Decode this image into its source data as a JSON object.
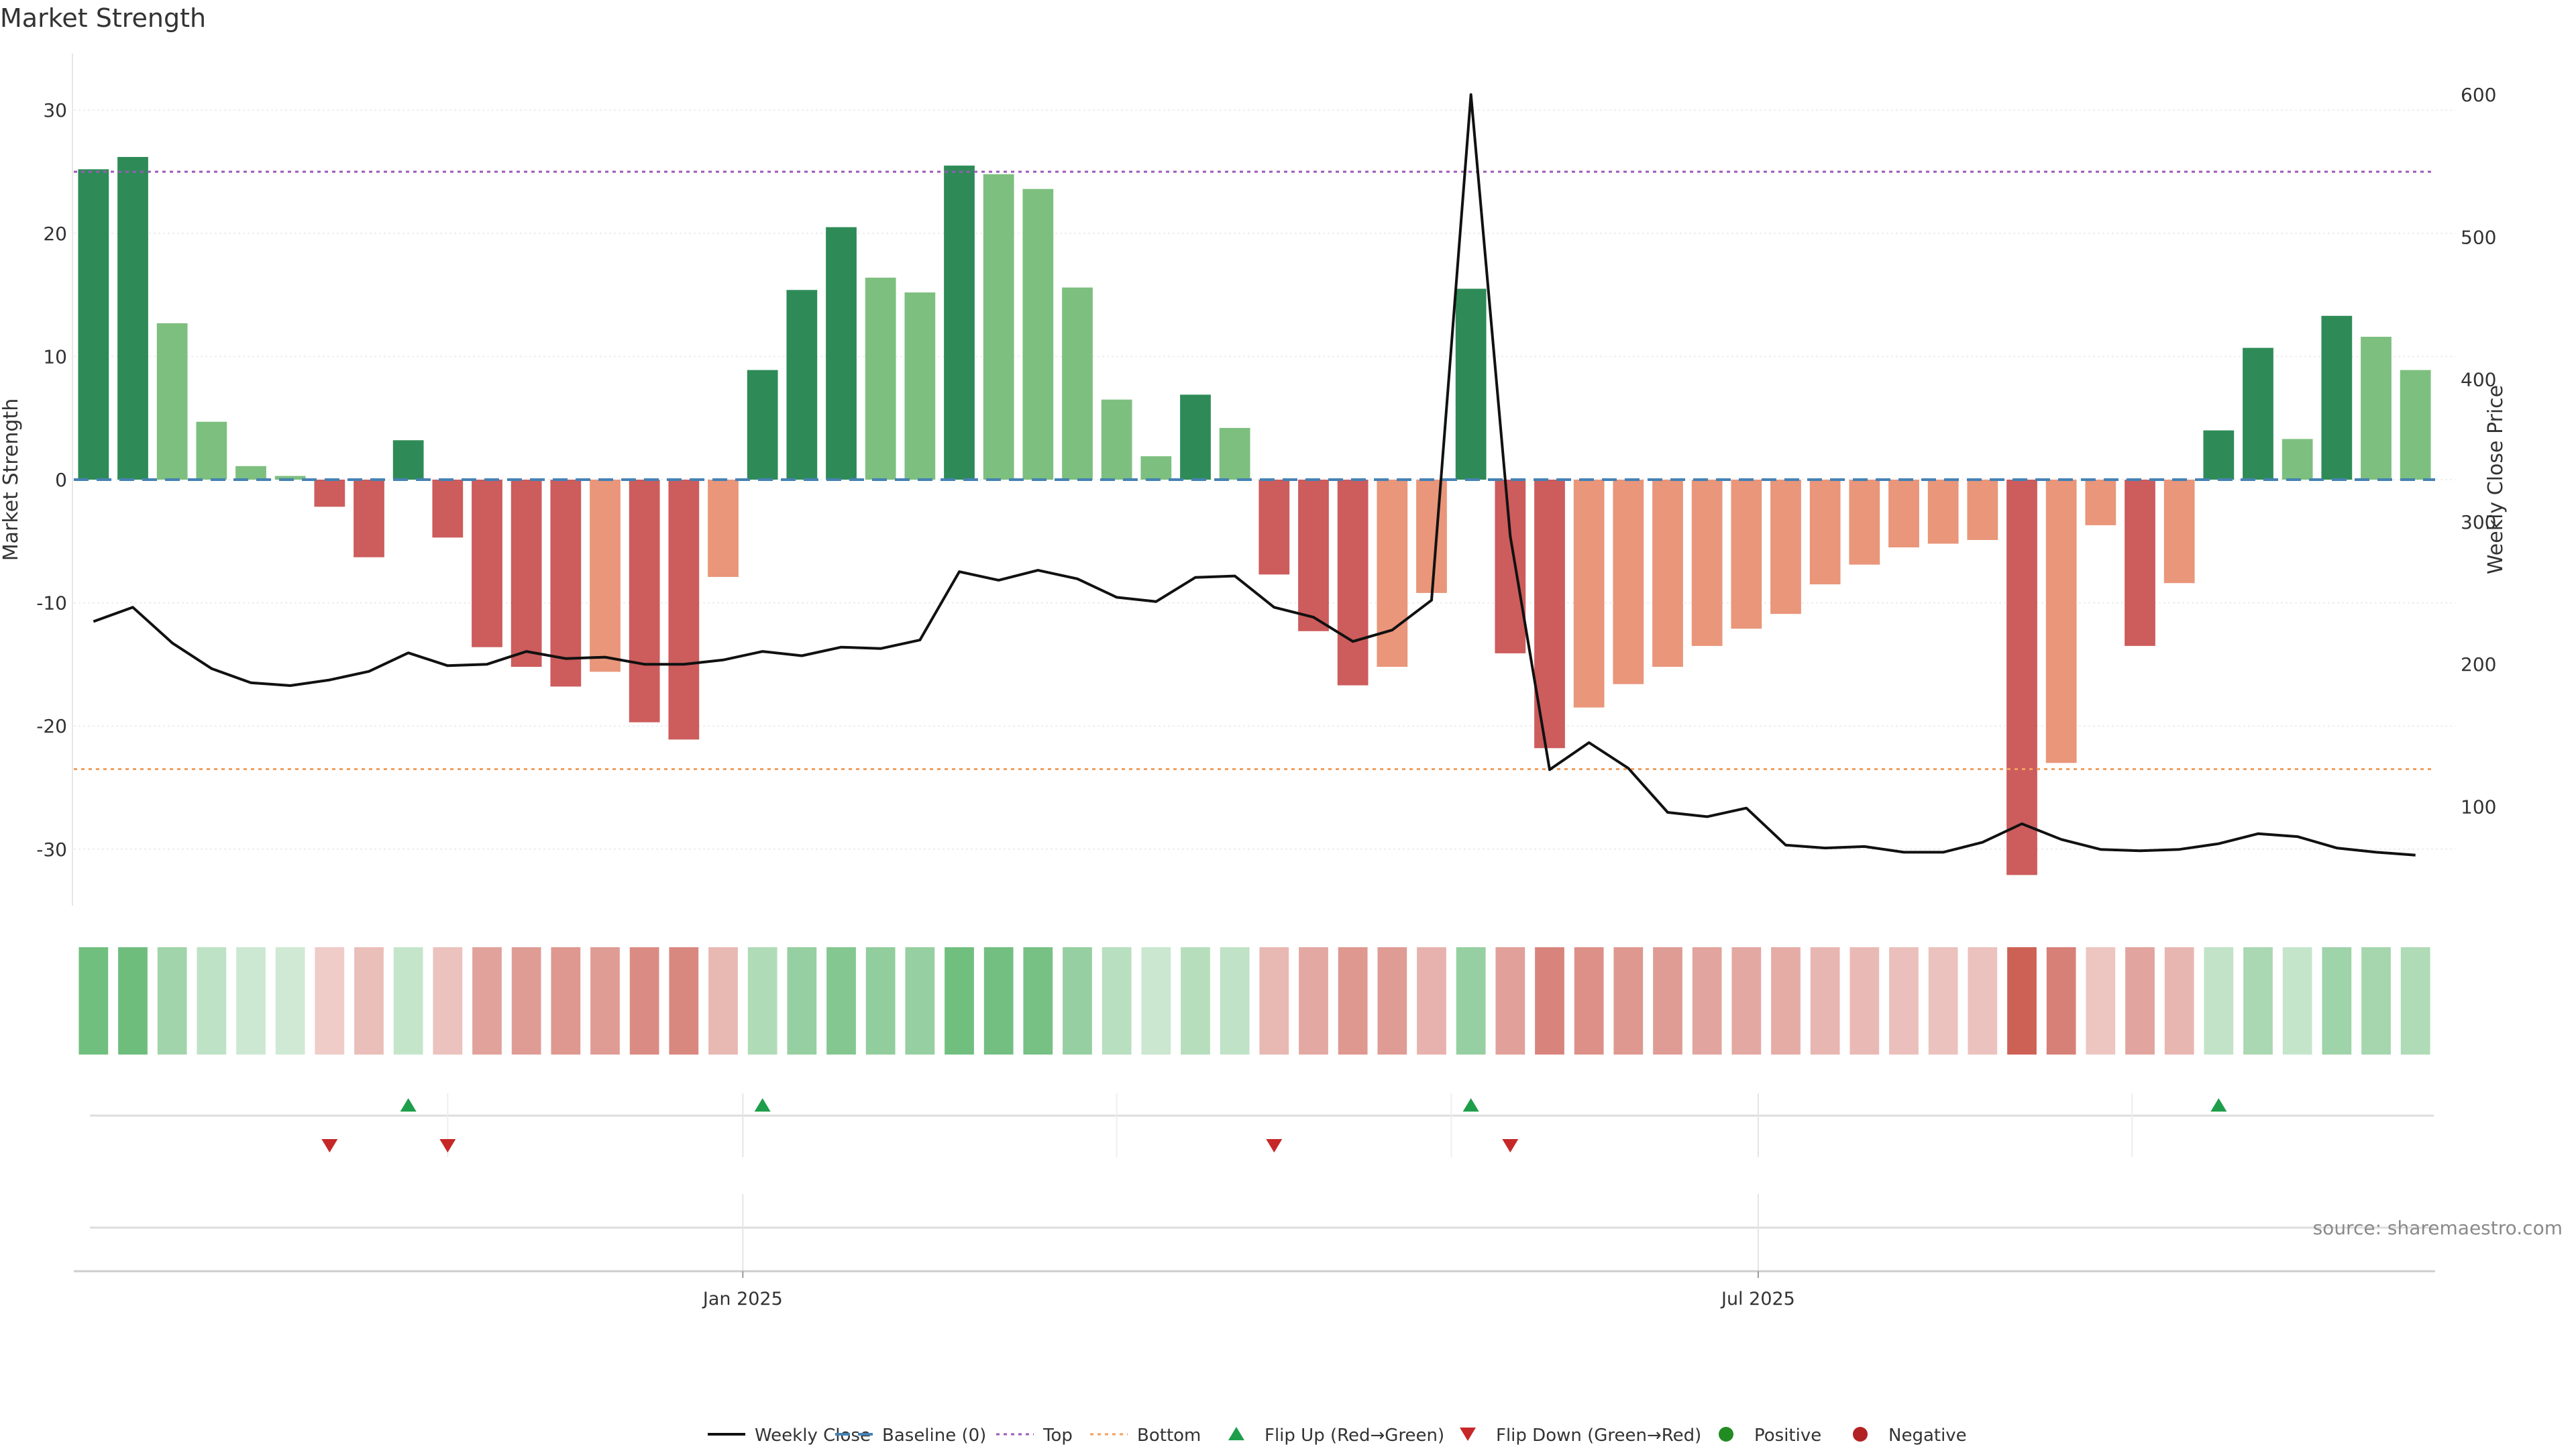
{
  "title": "Market Strength",
  "source": "source: sharemaestro.com",
  "colors": {
    "green_strong": "#2e8b57",
    "green_light": "#7dbf7f",
    "red_strong": "#cd5c5c",
    "red_light": "#e9967a",
    "baseline": "#4682b4",
    "top": "#9b59b6",
    "bottom": "#f0a060",
    "flip_up": "#1e9e4a",
    "flip_down": "#c62828",
    "price_line": "#111111",
    "positive_dot": "#228b22",
    "negative_dot": "#b22222"
  },
  "chart_data": {
    "type": "bar",
    "title": "Market Strength",
    "ylabel": "Market Strength",
    "y2label": "Weekly Close Price",
    "ylim": [
      -34,
      34
    ],
    "y2lim": [
      33,
      635
    ],
    "yticks": [
      30,
      20,
      10,
      0,
      -10,
      -20,
      -30
    ],
    "y2ticks": [
      600,
      500,
      400,
      300,
      200,
      100
    ],
    "xticks": [
      {
        "label": "Jan 2025",
        "index": 16.5
      },
      {
        "label": "Jul 2025",
        "index": 42.3
      }
    ],
    "baseline": 0,
    "top": 25,
    "bottom": -23.5,
    "strength": [
      25.2,
      26.2,
      12.7,
      4.7,
      1.1,
      0.3,
      -2.2,
      -6.3,
      3.2,
      -4.7,
      -13.6,
      -15.2,
      -16.8,
      -15.6,
      -19.7,
      -21.1,
      -7.9,
      8.9,
      15.4,
      20.5,
      16.4,
      15.2,
      25.5,
      24.8,
      23.6,
      15.6,
      6.5,
      1.9,
      6.9,
      4.2,
      -7.7,
      -12.3,
      -16.7,
      -15.2,
      -9.2,
      15.5,
      -14.1,
      -21.8,
      -18.5,
      -16.6,
      -15.2,
      -13.5,
      -12.1,
      -10.9,
      -8.5,
      -6.9,
      -5.5,
      -5.2,
      -4.9,
      -32.1,
      -23.0,
      -3.7,
      -13.5,
      -8.4,
      4.0,
      10.7,
      3.3,
      13.3,
      11.6,
      8.9
    ],
    "bar_shade": [
      "s",
      "s",
      "l",
      "l",
      "l",
      "l",
      "s",
      "s",
      "s",
      "s",
      "s",
      "s",
      "s",
      "l",
      "s",
      "s",
      "l",
      "s",
      "s",
      "s",
      "l",
      "l",
      "s",
      "l",
      "l",
      "l",
      "l",
      "l",
      "s",
      "l",
      "s",
      "s",
      "s",
      "l",
      "l",
      "s",
      "s",
      "s",
      "l",
      "l",
      "l",
      "l",
      "l",
      "l",
      "l",
      "l",
      "l",
      "l",
      "l",
      "s",
      "l",
      "l",
      "s",
      "l",
      "s",
      "s",
      "l",
      "s",
      "l",
      "l"
    ],
    "weekly_close": [
      230,
      240,
      215,
      197,
      187,
      185,
      189,
      195,
      208,
      199,
      200,
      209,
      204,
      205,
      200,
      200,
      203,
      209,
      206,
      212,
      211,
      217,
      265,
      259,
      266,
      260,
      247,
      244,
      261,
      262,
      240,
      233,
      216,
      224,
      245,
      600,
      290,
      126,
      145,
      127,
      96,
      93,
      99,
      73,
      71,
      72,
      68,
      68,
      75,
      88,
      77,
      70,
      69,
      70,
      74,
      81,
      79,
      71,
      68,
      66
    ],
    "flip_up_index": [
      8,
      17,
      35,
      54
    ],
    "flip_down_index": [
      6,
      9,
      30,
      36
    ],
    "legend": [
      "Weekly Close",
      "Baseline (0)",
      "Top",
      "Bottom",
      "Flip Up (Red→Green)",
      "Flip Down (Green→Red)",
      "Positive",
      "Negative"
    ],
    "legend_position": "bottom-center"
  }
}
